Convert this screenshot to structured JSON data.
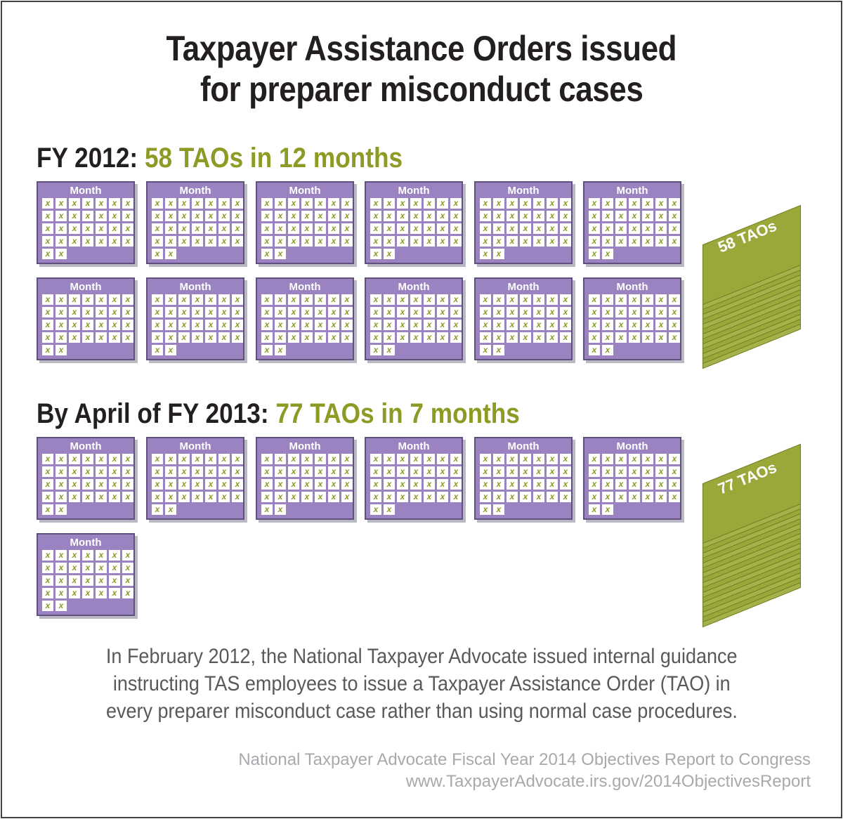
{
  "title": {
    "line1": "Taxpayer Assistance Orders issued",
    "line2": "for preparer misconduct cases"
  },
  "fy2012": {
    "label": "FY 2012:",
    "highlight": "58 TAOs in 12 months",
    "months": 12,
    "stack_label": "58 TAOs"
  },
  "fy2013": {
    "label": "By April of FY 2013:",
    "highlight": "77 TAOs in 7 months",
    "months": 7,
    "stack_label": "77 TAOs"
  },
  "calendar": {
    "label": "Month",
    "mark": "x",
    "cells": 30
  },
  "note": {
    "line1": "In February 2012, the National Taxpayer Advocate issued internal guidance",
    "line2": "instructing TAS employees to issue a Taxpayer Assistance Order (TAO) in",
    "line3": "every preparer misconduct case rather than using normal case procedures."
  },
  "source": {
    "line1": "National Taxpayer Advocate Fiscal Year 2014 Objectives Report to Congress",
    "line2": "www.TaxpayerAdvocate.irs.gov/2014ObjectivesReport"
  },
  "colors": {
    "purple": "#9a83c0",
    "green": "#8d9a23"
  }
}
